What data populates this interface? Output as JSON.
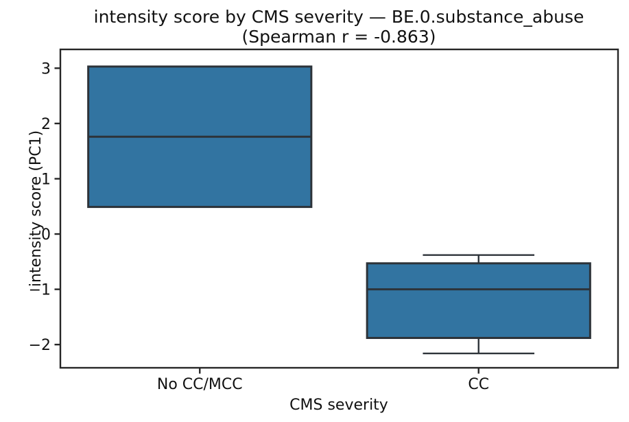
{
  "figure": {
    "title_line1": "intensity score by CMS severity — BE.0.substance_abuse",
    "title_line2": "(Spearman r = -0.863)"
  },
  "chart_data": {
    "type": "box",
    "title": "intensity score by CMS severity — BE.0.substance_abuse (Spearman r = -0.863)",
    "xlabel": "CMS severity",
    "ylabel": "intensity score (PC1)",
    "categories": [
      "No CC/MCC",
      "CC"
    ],
    "ylim": [
      -2.42,
      3.34
    ],
    "yticks": [
      3,
      2,
      1,
      0,
      -1,
      -2
    ],
    "ytick_labels": [
      "3",
      "2",
      "1",
      "0",
      "−1",
      "−2"
    ],
    "grid": false,
    "legend": null,
    "boxes": [
      {
        "category": "No CC/MCC",
        "whisker_low": 0.49,
        "q1": 0.49,
        "median": 1.76,
        "q3": 3.03,
        "whisker_high": 3.03,
        "fliers": []
      },
      {
        "category": "CC",
        "whisker_low": -2.16,
        "q1": -1.88,
        "median": -1.0,
        "q3": -0.53,
        "whisker_high": -0.38,
        "fliers": []
      }
    ],
    "colors": {
      "box_fill": "#3274a1",
      "box_edge": "#2d3339",
      "spine": "#262626",
      "text": "#111111"
    }
  }
}
